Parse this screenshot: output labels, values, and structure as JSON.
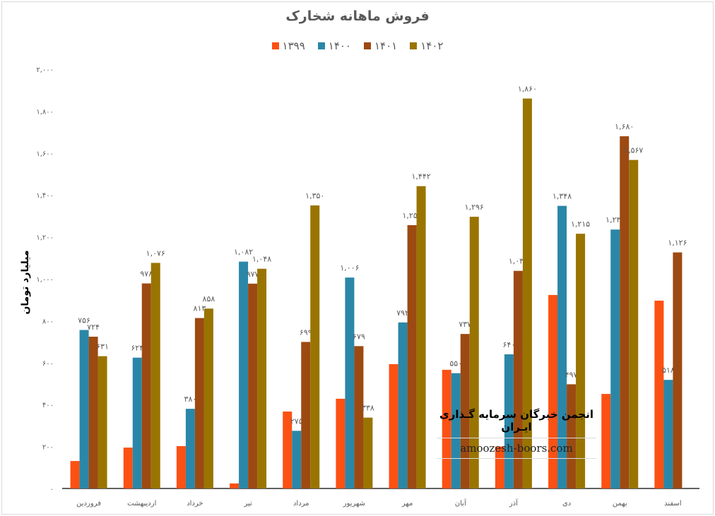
{
  "chart_data": {
    "type": "bar",
    "title": "فروش ماهانه شخارک",
    "ylabel": "میلیارد تومان",
    "xlabel": "",
    "ylim": [
      0,
      2000
    ],
    "yticks": [
      0,
      200,
      400,
      600,
      800,
      1000,
      1200,
      1400,
      1600,
      1800,
      2000
    ],
    "ytick_labels": [
      "۰",
      "۲۰۰",
      "۴۰۰",
      "۶۰۰",
      "۸۰۰",
      "۱,۰۰۰",
      "۱,۲۰۰",
      "۱,۴۰۰",
      "۱,۶۰۰",
      "۱,۸۰۰",
      "۲,۰۰۰"
    ],
    "grid": false,
    "legend_position": "top",
    "categories": [
      "فروردین",
      "اردیبهشت",
      "خرداد",
      "تیر",
      "مرداد",
      "شهریور",
      "مهر",
      "آبان",
      "آذر",
      "دی",
      "بهمن",
      "اسفند"
    ],
    "series": [
      {
        "name": "۱۳۹۹",
        "color": "#fc5113",
        "values": [
          131,
          195,
          202,
          24,
          367,
          428,
          593,
          566,
          200,
          923,
          451,
          896
        ],
        "labels": [
          null,
          null,
          null,
          null,
          null,
          null,
          null,
          null,
          null,
          null,
          null,
          null
        ]
      },
      {
        "name": "۱۴۰۰",
        "color": "#2a87a8",
        "values": [
          756,
          624,
          380,
          1082,
          275,
          1006,
          792,
          550,
          640,
          1348,
          1235,
          518
        ],
        "labels": [
          "۷۵۶",
          "۶۲۴",
          "۳۸۰",
          "۱,۰۸۲",
          "۲۷۵",
          "۱,۰۰۶",
          "۷۹۲",
          "۵۵۰",
          "۶۴۰",
          "۱,۳۴۸",
          "۱,۲۳۵",
          "۵۱۸"
        ]
      },
      {
        "name": "۱۴۰۱",
        "color": "#9c4a12",
        "values": [
          724,
          978,
          813,
          977,
          699,
          679,
          1256,
          737,
          1038,
          497,
          1680,
          1126
        ],
        "labels": [
          "۷۲۴",
          "۹۷۸",
          "۸۱۳",
          "۹۷۷",
          "۶۹۹",
          "۶۷۹",
          "۱,۲۵۶",
          "۷۳۷",
          "۱,۰۳۸",
          "۴۹۷",
          "۱,۶۸۰",
          "۱,۱۲۶"
        ]
      },
      {
        "name": "۱۴۰۲",
        "color": "#997400",
        "values": [
          631,
          1076,
          858,
          1048,
          1350,
          338,
          1442,
          1296,
          1860,
          1215,
          1567,
          null
        ],
        "labels": [
          "۶۳۱",
          "۱,۰۷۶",
          "۸۵۸",
          "۱,۰۴۸",
          "۱,۳۵۰",
          "۳۳۸",
          "۱,۴۴۲",
          "۱,۲۹۶",
          "۱,۸۶۰",
          "۱,۲۱۵",
          "۱,۵۶۷",
          null
        ]
      }
    ]
  },
  "watermark": {
    "line1": "انجمن خبرگان سرمایه گـذاری ایـران",
    "line2": "amoozesh-boors.com"
  }
}
